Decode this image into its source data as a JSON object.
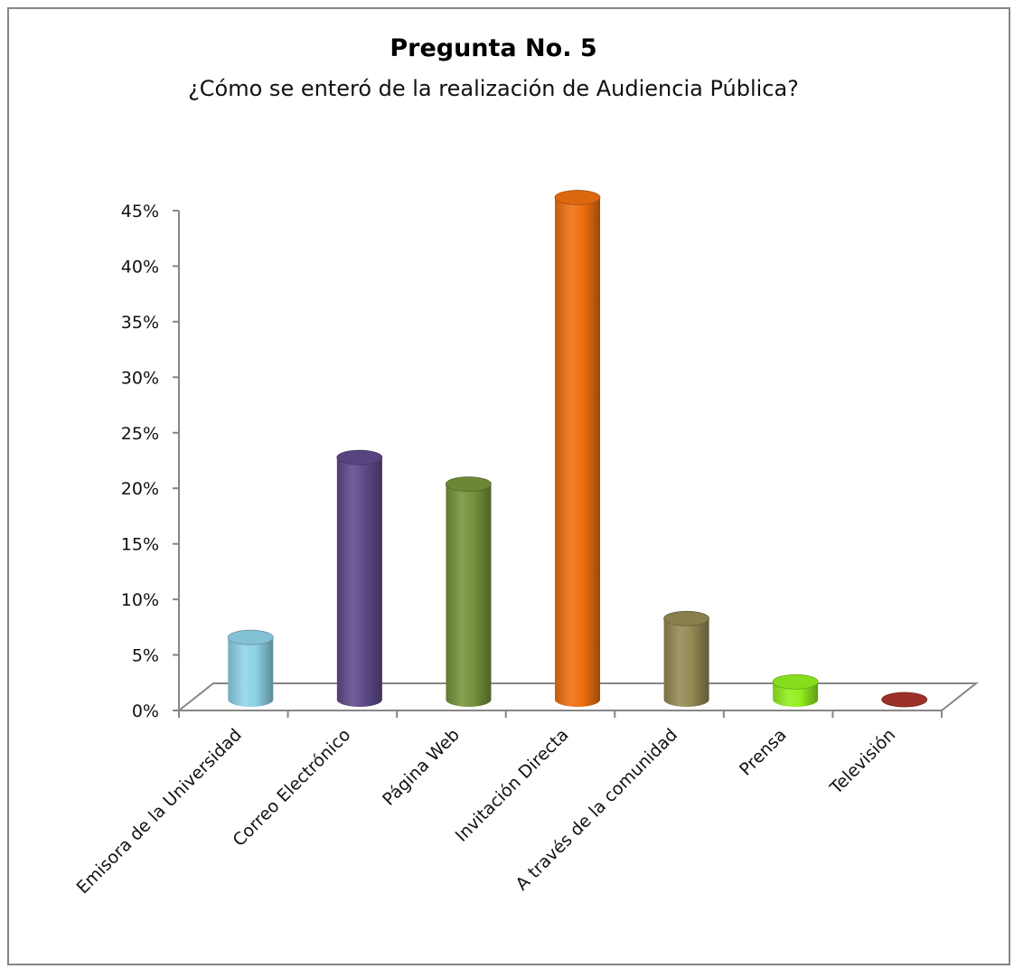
{
  "chart_data": {
    "type": "bar",
    "title": "Pregunta No. 5",
    "subtitle": "¿Cómo se enteró de la realización de Audiencia Pública?",
    "categories": [
      "Emisora de la Universidad",
      "Correo Electrónico",
      "Página Web",
      "Invitación Directa",
      "A través de la comunidad",
      "Prensa",
      "Televisión"
    ],
    "values": [
      5.6,
      21.8,
      19.4,
      45.2,
      7.3,
      1.6,
      0
    ],
    "colors": [
      "#8ED3E8",
      "#5F4B8B",
      "#77933C",
      "#F07010",
      "#948A54",
      "#92F01E",
      "#A8352C"
    ],
    "ylim": [
      0,
      45
    ],
    "yticks": [
      "0%",
      "5%",
      "10%",
      "15%",
      "20%",
      "25%",
      "30%",
      "35%",
      "40%",
      "45%"
    ],
    "grid": false,
    "legend": "none",
    "style": "3d-cylinder"
  }
}
